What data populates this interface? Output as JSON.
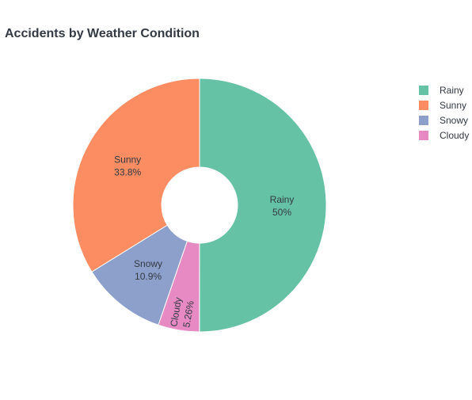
{
  "chart_data": {
    "type": "pie",
    "title": "Accidents by Weather Condition",
    "hole": true,
    "legend_position": "top-right",
    "slices": [
      {
        "label": "Rainy",
        "value": 50.0,
        "percent_label": "50%",
        "color": "#66c2a5"
      },
      {
        "label": "Cloudy",
        "value": 5.26,
        "percent_label": "5.26%",
        "color": "#e78ac3"
      },
      {
        "label": "Snowy",
        "value": 10.9,
        "percent_label": "10.9%",
        "color": "#8da0cb"
      },
      {
        "label": "Sunny",
        "value": 33.8,
        "percent_label": "33.8%",
        "color": "#fc8d62"
      }
    ],
    "legend": [
      "Rainy",
      "Sunny",
      "Snowy",
      "Cloudy"
    ]
  }
}
